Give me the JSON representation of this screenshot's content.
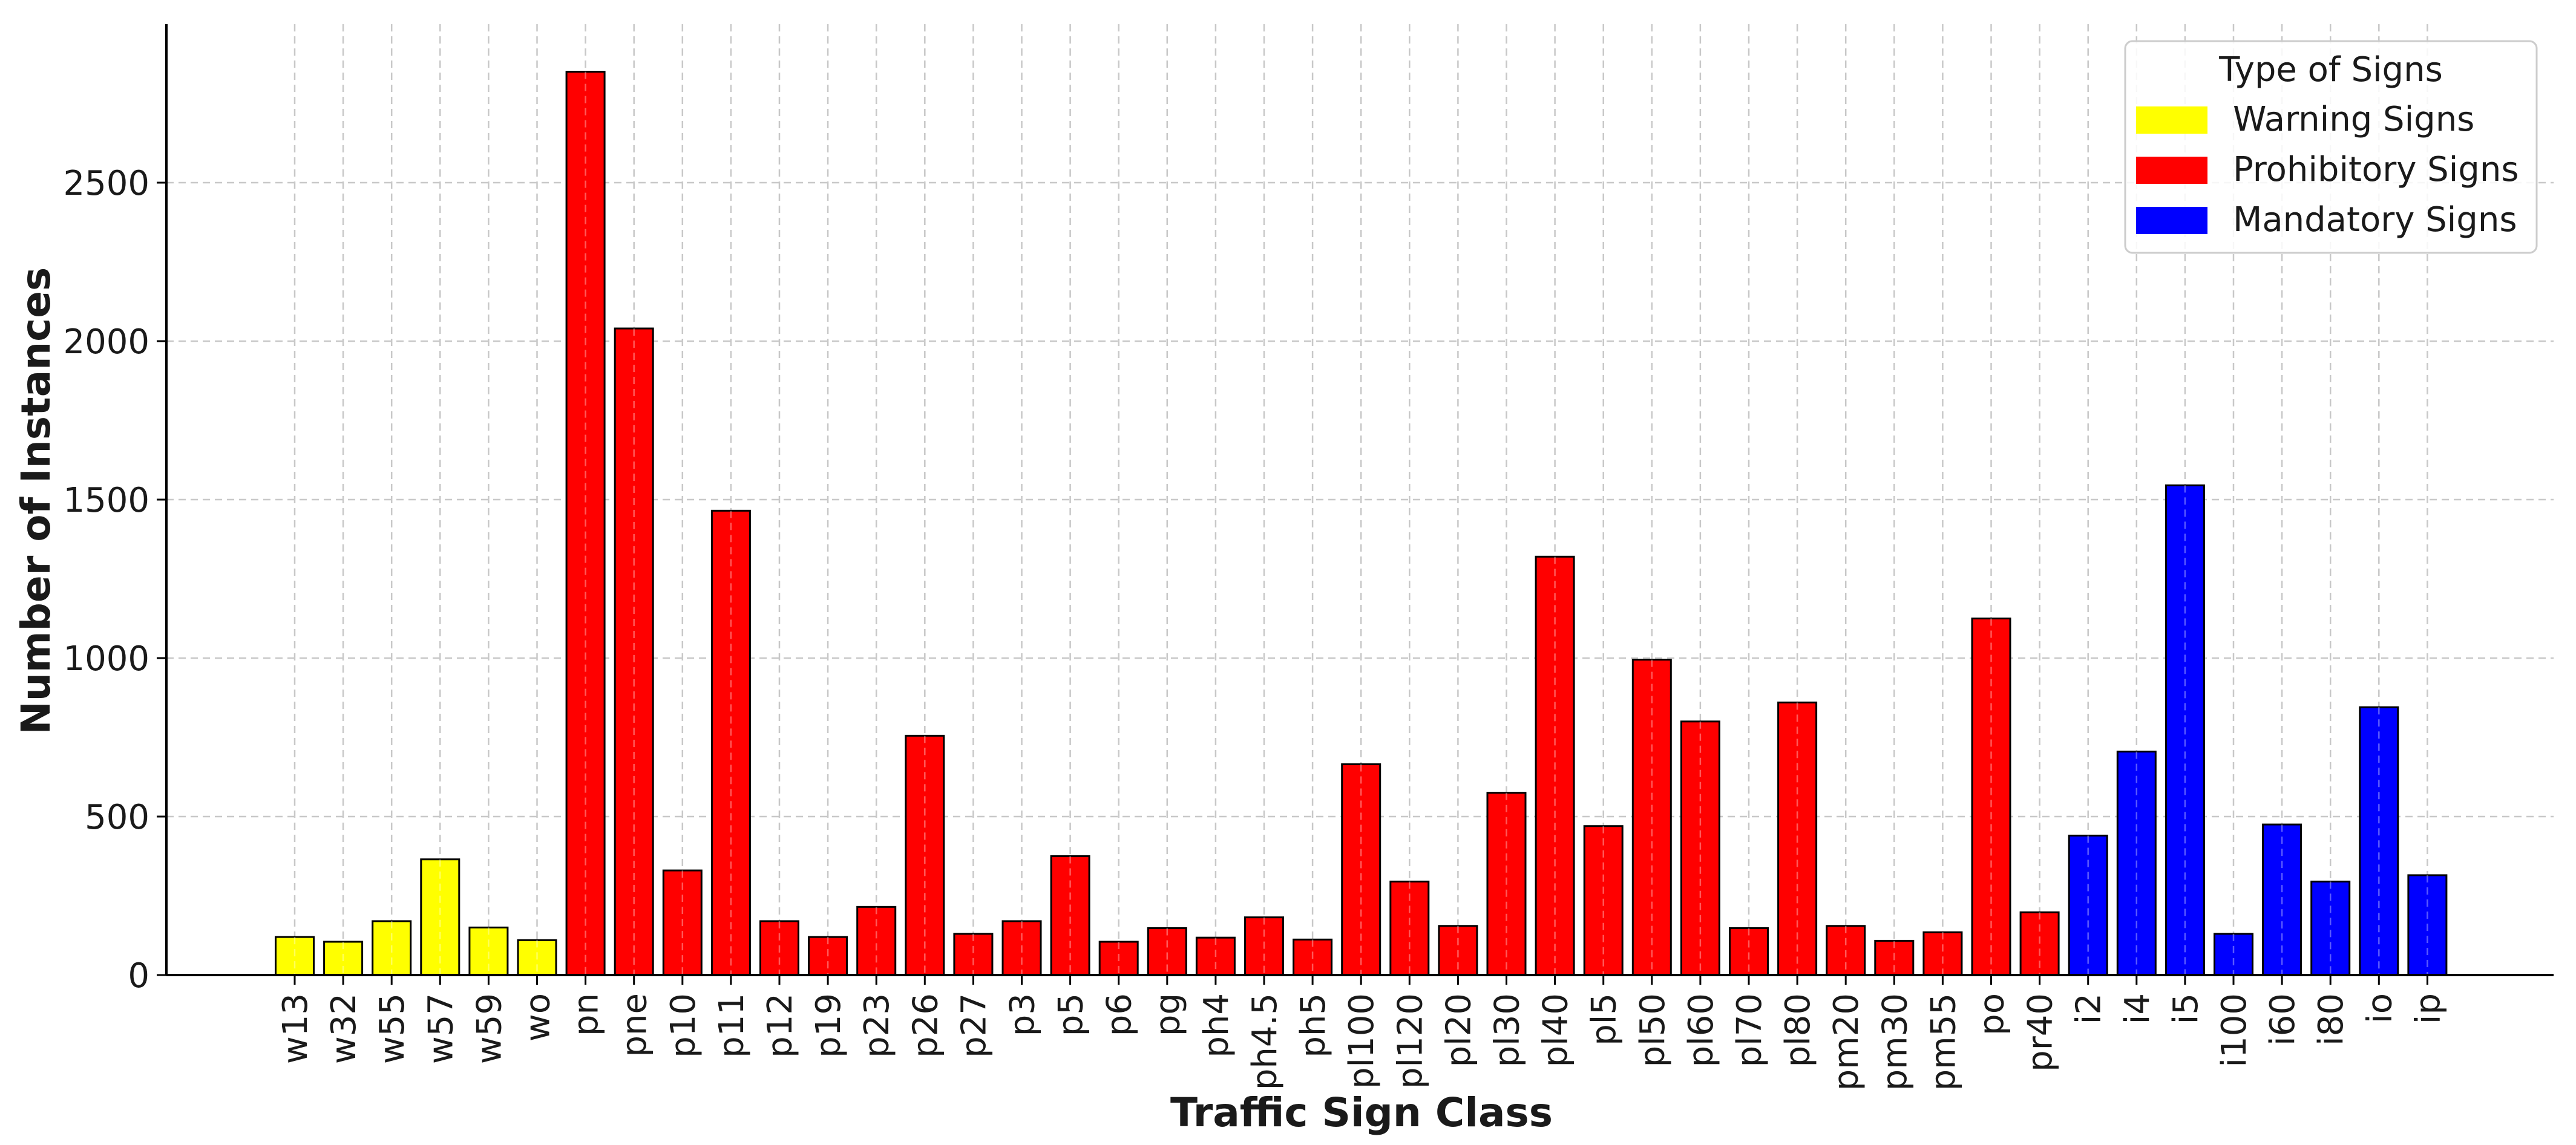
{
  "chart_data": {
    "type": "bar",
    "title": "",
    "xlabel": "Traffic Sign Class",
    "ylabel": "Number of Instances",
    "ylim": [
      0,
      3000
    ],
    "yticks": [
      0,
      500,
      1000,
      1500,
      2000,
      2500
    ],
    "grid": true,
    "legend": {
      "title": "Type of Signs",
      "placement": "top-right",
      "entries": [
        {
          "label": "Warning Signs",
          "color": "#ffff00",
          "group": "warning"
        },
        {
          "label": "Prohibitory Signs",
          "color": "#ff0000",
          "group": "prohibitory"
        },
        {
          "label": "Mandatory Signs",
          "color": "#0000ff",
          "group": "mandatory"
        }
      ]
    },
    "categories": [
      "w13",
      "w32",
      "w55",
      "w57",
      "w59",
      "wo",
      "pn",
      "pne",
      "p10",
      "p11",
      "p12",
      "p19",
      "p23",
      "p26",
      "p27",
      "p3",
      "p5",
      "p6",
      "pg",
      "ph4",
      "ph4.5",
      "ph5",
      "pl100",
      "pl120",
      "pl20",
      "pl30",
      "pl40",
      "pl5",
      "pl50",
      "pl60",
      "pl70",
      "pl80",
      "pm20",
      "pm30",
      "pm55",
      "po",
      "pr40",
      "i2",
      "i4",
      "i5",
      "i100",
      "i60",
      "i80",
      "io",
      "ip"
    ],
    "values": [
      120,
      105,
      170,
      365,
      150,
      110,
      2850,
      2040,
      330,
      1465,
      170,
      120,
      215,
      755,
      130,
      170,
      375,
      105,
      148,
      118,
      182,
      112,
      665,
      295,
      155,
      575,
      1320,
      470,
      995,
      800,
      148,
      860,
      155,
      108,
      135,
      1125,
      198,
      440,
      705,
      1545,
      130,
      475,
      295,
      845,
      315
    ],
    "groups": [
      "warning",
      "warning",
      "warning",
      "warning",
      "warning",
      "warning",
      "prohibitory",
      "prohibitory",
      "prohibitory",
      "prohibitory",
      "prohibitory",
      "prohibitory",
      "prohibitory",
      "prohibitory",
      "prohibitory",
      "prohibitory",
      "prohibitory",
      "prohibitory",
      "prohibitory",
      "prohibitory",
      "prohibitory",
      "prohibitory",
      "prohibitory",
      "prohibitory",
      "prohibitory",
      "prohibitory",
      "prohibitory",
      "prohibitory",
      "prohibitory",
      "prohibitory",
      "prohibitory",
      "prohibitory",
      "prohibitory",
      "prohibitory",
      "prohibitory",
      "prohibitory",
      "prohibitory",
      "mandatory",
      "mandatory",
      "mandatory",
      "mandatory",
      "mandatory",
      "mandatory",
      "mandatory",
      "mandatory"
    ]
  }
}
